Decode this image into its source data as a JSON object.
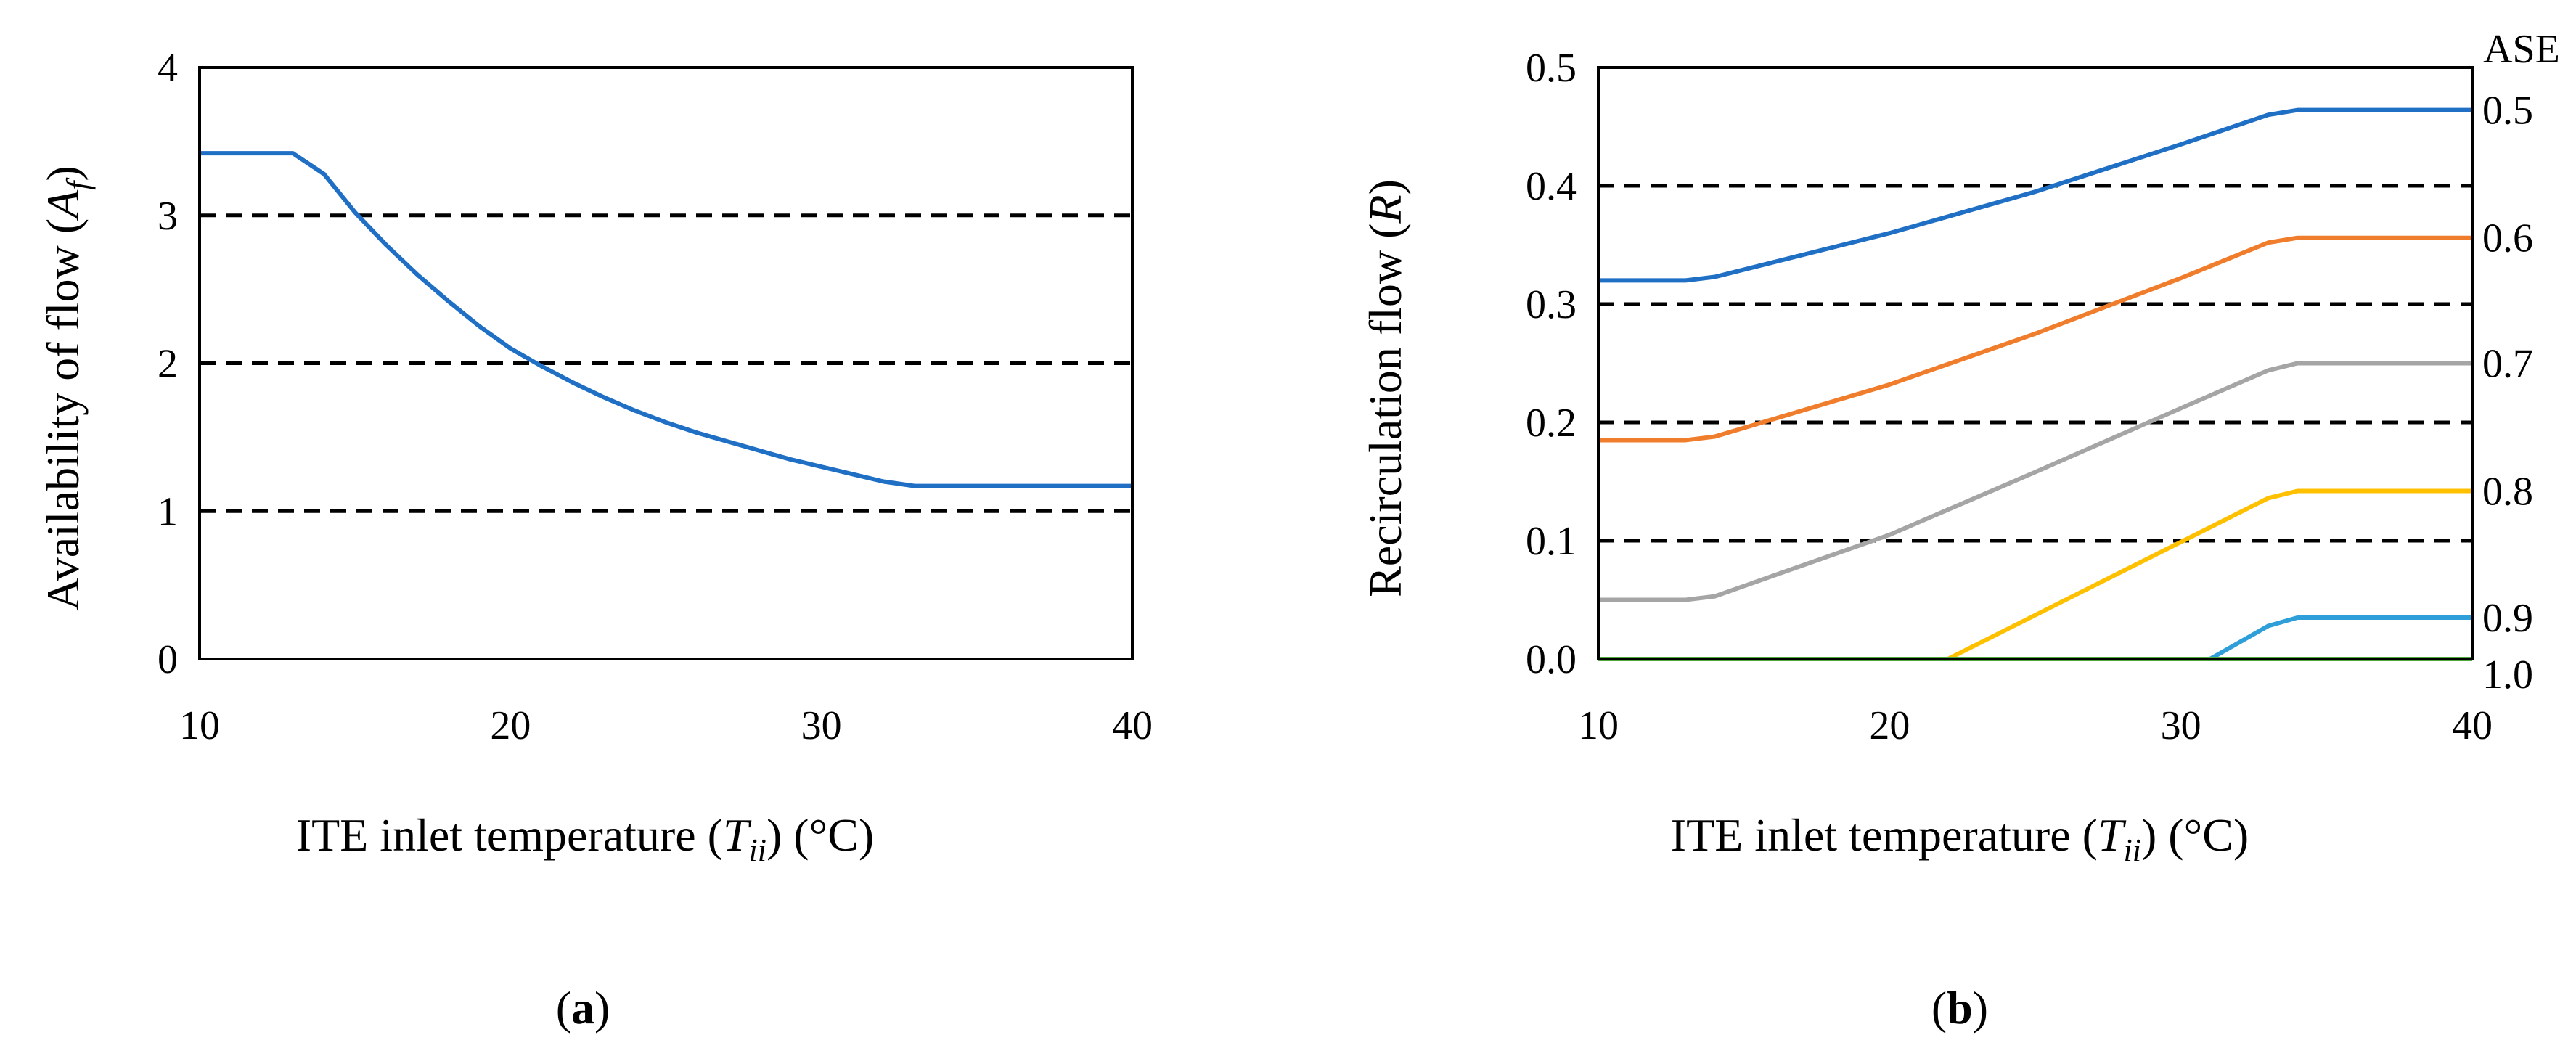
{
  "chart_data": [
    {
      "type": "line",
      "panel_label_open": "(",
      "panel_label": "a",
      "panel_label_close": ")",
      "xlabel": "ITE inlet temperature (",
      "xlabel_var": "T",
      "xlabel_sub": "ii",
      "xlabel_suffix": ") (°C)",
      "ylabel": "Availability of flow (",
      "ylabel_var": "A",
      "ylabel_sub": "f",
      "ylabel_suffix": ")",
      "xlim": [
        10,
        40
      ],
      "ylim": [
        0,
        4
      ],
      "x_ticks": [
        "10",
        "20",
        "30",
        "40"
      ],
      "y_ticks": [
        "0",
        "1",
        "2",
        "3",
        "4"
      ],
      "gridlines_dashed": [
        1,
        2,
        3
      ],
      "series": [
        {
          "name": "Af",
          "color": "#1f6fc5",
          "x": [
            10,
            13,
            14,
            15,
            16,
            17,
            18,
            19,
            20,
            21,
            22,
            23,
            24,
            25,
            26,
            27,
            28,
            29,
            30,
            31,
            32,
            33,
            34,
            40
          ],
          "y": [
            3.42,
            3.42,
            3.28,
            3.02,
            2.8,
            2.6,
            2.42,
            2.25,
            2.1,
            1.98,
            1.87,
            1.77,
            1.68,
            1.6,
            1.53,
            1.47,
            1.41,
            1.35,
            1.3,
            1.25,
            1.2,
            1.17,
            1.17,
            1.17
          ]
        }
      ]
    },
    {
      "type": "line",
      "panel_label_open": "(",
      "panel_label": "b",
      "panel_label_close": ")",
      "xlabel": "ITE inlet temperature (",
      "xlabel_var": "T",
      "xlabel_sub": "ii",
      "xlabel_suffix": ") (°C)",
      "ylabel": "Recirculation flow (",
      "ylabel_var": "R",
      "ylabel_suffix": ")",
      "secondary_ylabel": "ASE",
      "xlim": [
        10,
        40
      ],
      "ylim": [
        0,
        0.5
      ],
      "x_ticks": [
        "10",
        "20",
        "30",
        "40"
      ],
      "y_ticks": [
        "0.0",
        "0.1",
        "0.2",
        "0.3",
        "0.4",
        "0.5"
      ],
      "gridlines_dashed": [
        0.1,
        0.2,
        0.3,
        0.4
      ],
      "series": [
        {
          "name": "ASE 0.5",
          "label": "0.5",
          "color": "#1f6fc5",
          "x": [
            10,
            13,
            14,
            20,
            25,
            30,
            33,
            34,
            40
          ],
          "y": [
            0.32,
            0.32,
            0.323,
            0.36,
            0.395,
            0.435,
            0.46,
            0.464,
            0.464
          ]
        },
        {
          "name": "ASE 0.6",
          "label": "0.6",
          "color": "#f07d2b",
          "x": [
            10,
            13,
            14,
            20,
            25,
            30,
            33,
            34,
            40
          ],
          "y": [
            0.185,
            0.185,
            0.188,
            0.232,
            0.275,
            0.322,
            0.352,
            0.356,
            0.356
          ]
        },
        {
          "name": "ASE 0.7",
          "label": "0.7",
          "color": "#a5a5a5",
          "x": [
            10,
            13,
            14,
            20,
            25,
            30,
            33,
            34,
            40
          ],
          "y": [
            0.05,
            0.05,
            0.053,
            0.105,
            0.158,
            0.212,
            0.244,
            0.25,
            0.25
          ]
        },
        {
          "name": "ASE 0.8",
          "label": "0.8",
          "color": "#ffc000",
          "x": [
            10,
            22,
            33,
            34,
            40
          ],
          "y": [
            0,
            0,
            0.136,
            0.142,
            0.142
          ]
        },
        {
          "name": "ASE 0.9",
          "label": "0.9",
          "color": "#2e9fd8",
          "x": [
            10,
            31,
            33,
            34,
            40
          ],
          "y": [
            0,
            0,
            0.028,
            0.035,
            0.035
          ]
        },
        {
          "name": "ASE 1.0",
          "label": "1.0",
          "color": "#4caa3c",
          "x": [
            10,
            40
          ],
          "y": [
            0,
            0
          ]
        }
      ]
    }
  ]
}
